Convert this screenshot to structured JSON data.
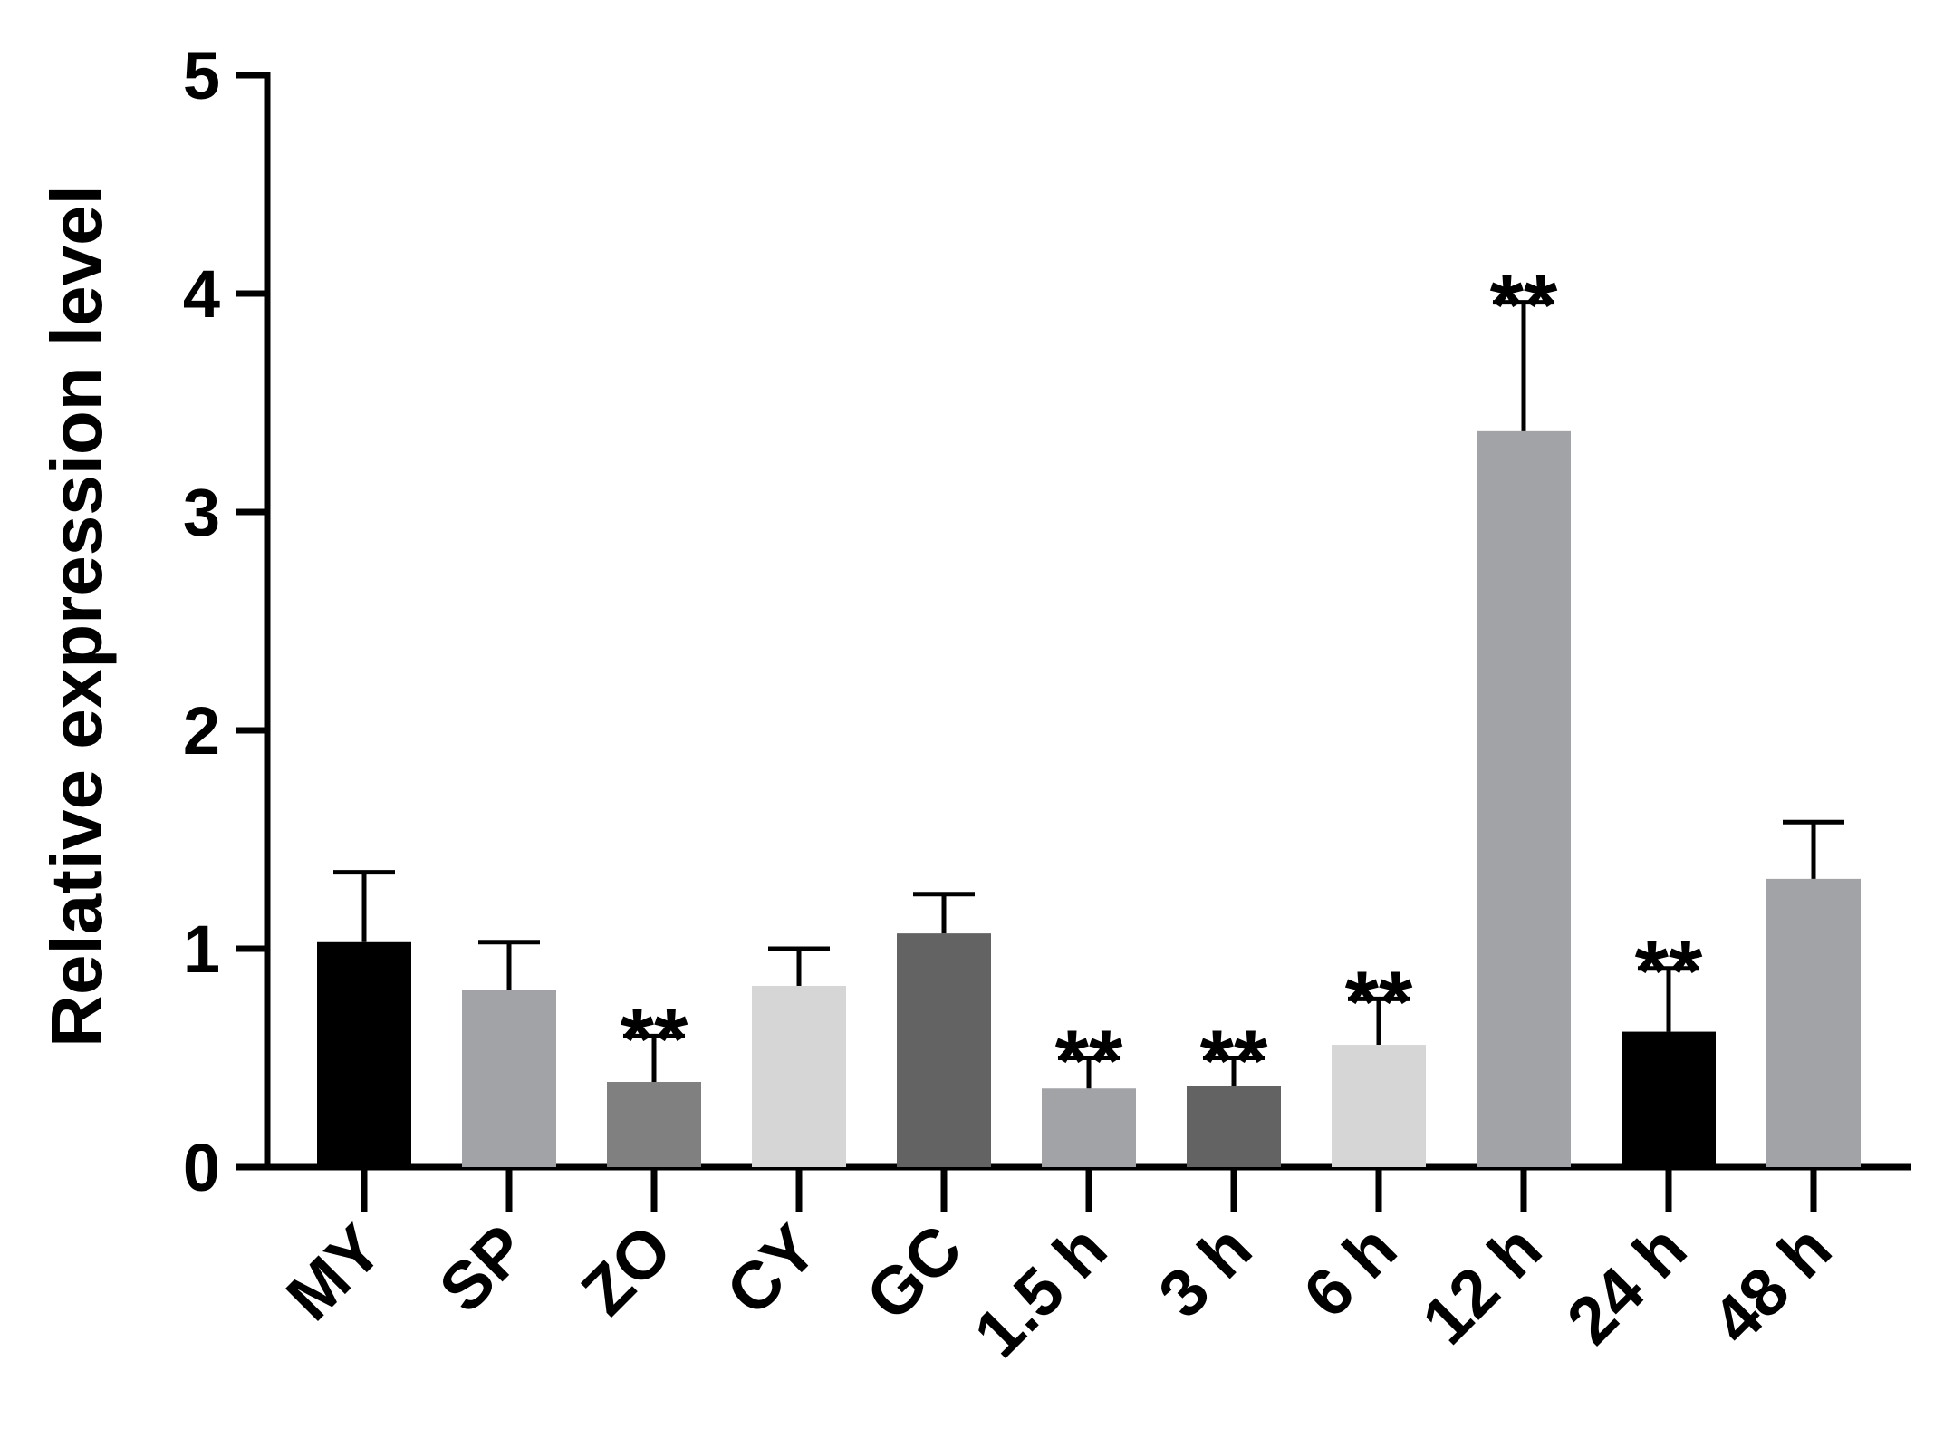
{
  "chart_data": {
    "type": "bar",
    "title": "",
    "xlabel": "",
    "ylabel": "Relative expression level",
    "ylim": [
      0,
      5
    ],
    "yticks": [
      0,
      1,
      2,
      3,
      4,
      5
    ],
    "grid": false,
    "categories": [
      "MY",
      "SP",
      "ZO",
      "CY",
      "GC",
      "1.5 h",
      "3 h",
      "6 h",
      "12 h",
      "24 h",
      "48 h"
    ],
    "values": [
      1.03,
      0.81,
      0.39,
      0.83,
      1.07,
      0.36,
      0.37,
      0.56,
      3.37,
      0.62,
      1.32
    ],
    "errors": [
      0.32,
      0.22,
      0.21,
      0.17,
      0.18,
      0.14,
      0.13,
      0.21,
      0.59,
      0.29,
      0.26
    ],
    "colors": [
      "#000000",
      "#a2a3a6",
      "#808080",
      "#d6d6d6",
      "#636363",
      "#a2a3a6",
      "#636363",
      "#d6d6d6",
      "#a2a3a6",
      "#000000",
      "#a2a3a6"
    ],
    "annotations": [
      "",
      "",
      "**",
      "",
      "",
      "**",
      "**",
      "**",
      "**",
      "**",
      ""
    ]
  }
}
